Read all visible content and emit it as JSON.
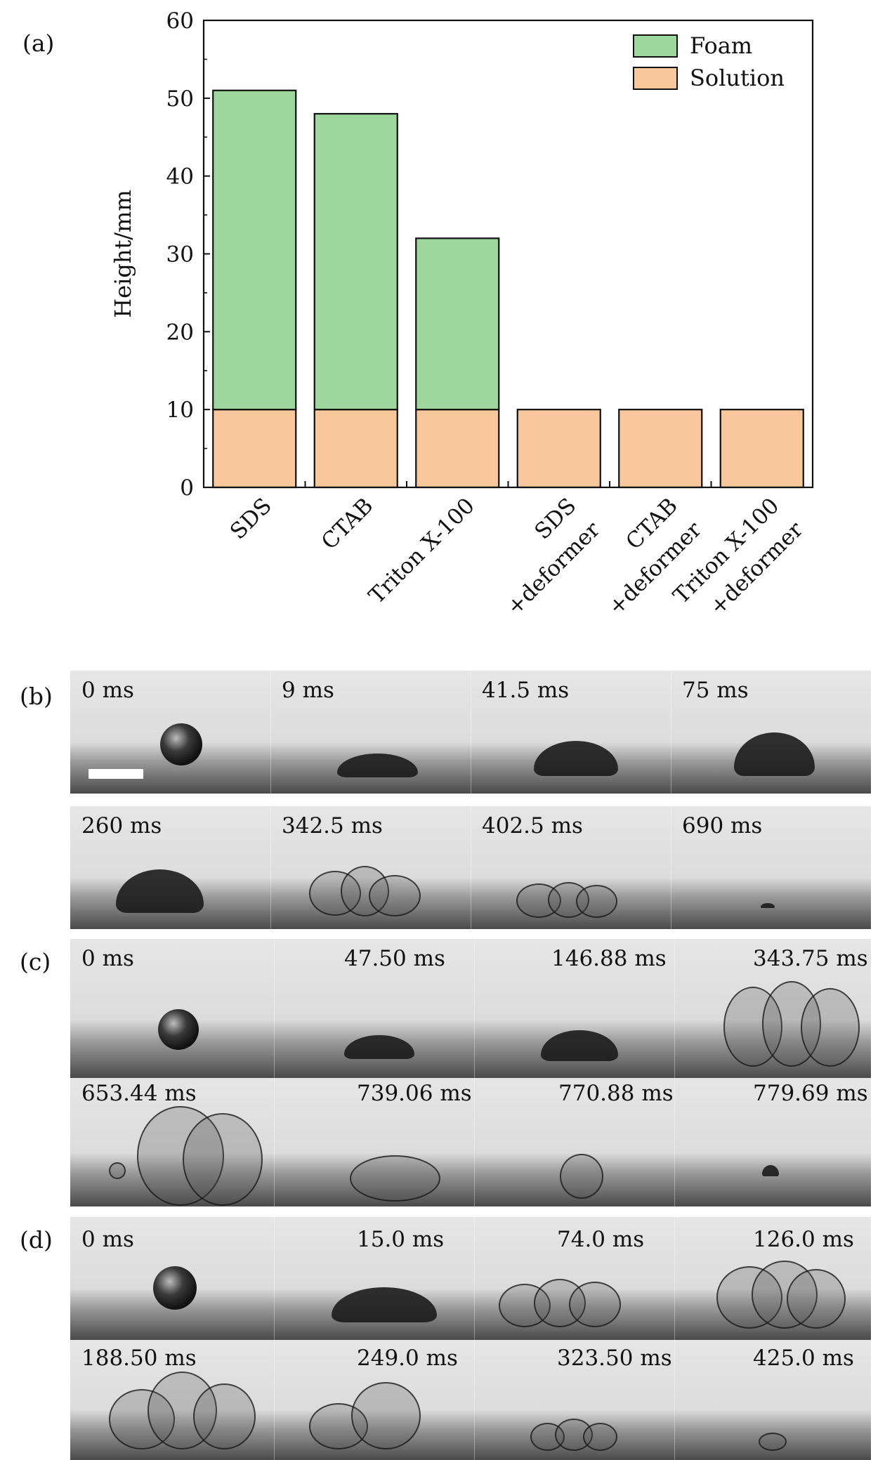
{
  "chart_data": {
    "type": "bar",
    "stacked": true,
    "panel_label": "(a)",
    "categories": [
      [
        "SDS"
      ],
      [
        "CTAB"
      ],
      [
        "Triton X-100"
      ],
      [
        "SDS",
        "+deformer"
      ],
      [
        "CTAB",
        "+deformer"
      ],
      [
        "Triton X-100",
        "+deformer"
      ]
    ],
    "series": [
      {
        "name": "Solution",
        "values": [
          10,
          10,
          10,
          10,
          10,
          10
        ],
        "color": "#f8c79b"
      },
      {
        "name": "Foam",
        "values": [
          41,
          38,
          22,
          0,
          0,
          0
        ],
        "color": "#9ed79e"
      }
    ],
    "totals": [
      51,
      48,
      32,
      10,
      10,
      10
    ],
    "xlabel": "",
    "ylabel": "Height/mm",
    "ylim": [
      0,
      60
    ],
    "yticks": [
      0,
      10,
      20,
      30,
      40,
      50,
      60
    ],
    "legend": [
      {
        "name": "Foam",
        "color": "#9ed79e"
      },
      {
        "name": "Solution",
        "color": "#f8c79b"
      }
    ],
    "legend_position": "top-right",
    "grid": false
  },
  "panels": [
    {
      "label": "(b)",
      "rows": [
        [
          "0 ms",
          "9 ms",
          "41.5 ms",
          "75 ms"
        ],
        [
          "260 ms",
          "342.5 ms",
          "402.5 ms",
          "690 ms"
        ]
      ]
    },
    {
      "label": "(c)",
      "rows": [
        [
          "0 ms",
          "47.50 ms",
          "146.88 ms",
          "343.75 ms"
        ],
        [
          "653.44 ms",
          "739.06 ms",
          "770.88 ms",
          "779.69 ms"
        ]
      ]
    },
    {
      "label": "(d)",
      "rows": [
        [
          "0 ms",
          "15.0 ms",
          "74.0 ms",
          "126.0 ms"
        ],
        [
          "188.50 ms",
          "249.0 ms",
          "323.50 ms",
          "425.0 ms"
        ]
      ]
    }
  ]
}
